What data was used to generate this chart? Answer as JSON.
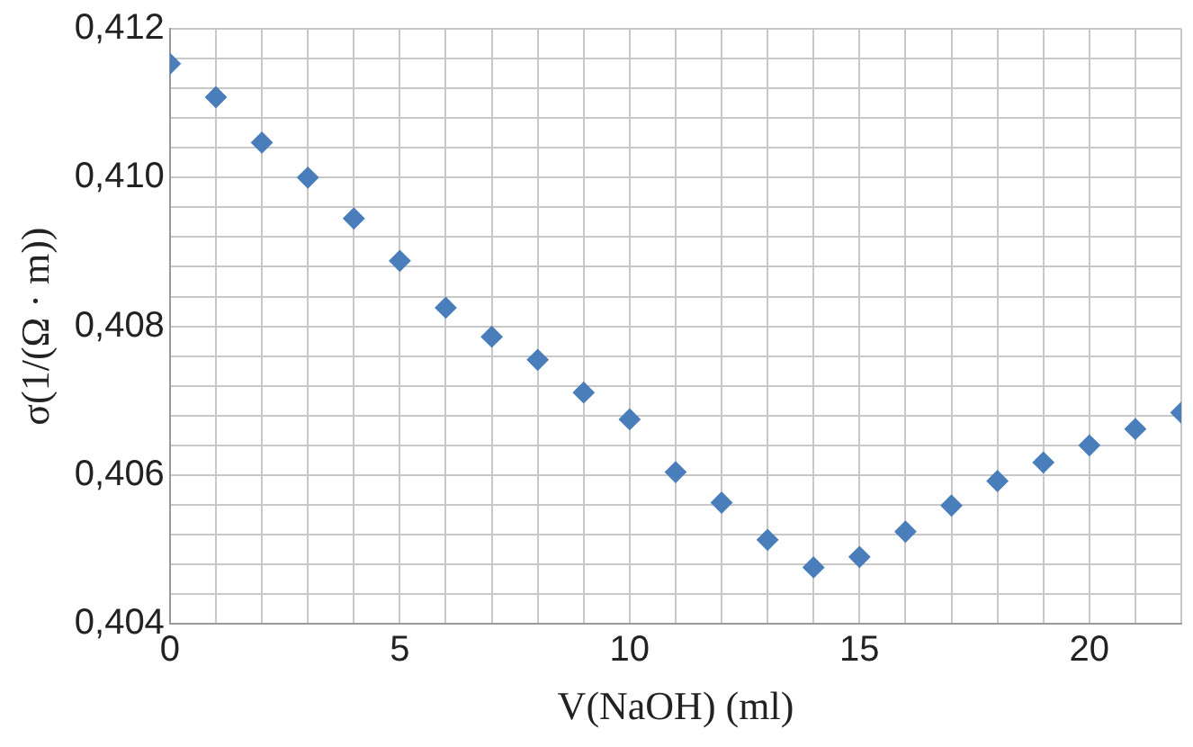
{
  "chart_data": {
    "type": "scatter",
    "xlabel": "V(NaOH) (ml)",
    "ylabel": "σ(1/(Ω · m))",
    "x": [
      0,
      1,
      2,
      3,
      4,
      5,
      6,
      7,
      8,
      9,
      10,
      11,
      12,
      13,
      14,
      15,
      16,
      17,
      18,
      19,
      20,
      21,
      22
    ],
    "series": [
      {
        "color": "#4a7ebb",
        "values": [
          0.41153,
          0.41108,
          0.41047,
          0.41,
          0.40945,
          0.40888,
          0.40825,
          0.40786,
          0.40755,
          0.40711,
          0.40675,
          0.40604,
          0.40563,
          0.40513,
          0.40476,
          0.4049,
          0.40524,
          0.40559,
          0.40592,
          0.40617,
          0.4064,
          0.40662,
          0.40684
        ]
      }
    ],
    "xlim": [
      0,
      22
    ],
    "ylim": [
      0.404,
      0.412
    ],
    "xticks": [
      0,
      {
        "value": 1,
        "label": null
      },
      {
        "value": 2,
        "label": null
      },
      {
        "value": 3,
        "label": null
      },
      {
        "value": 4,
        "label": null
      },
      5,
      {
        "value": 6,
        "label": null
      },
      {
        "value": 7,
        "label": null
      },
      {
        "value": 8,
        "label": null
      },
      {
        "value": 9,
        "label": null
      },
      10,
      {
        "value": 11,
        "label": null
      },
      {
        "value": 12,
        "label": null
      },
      {
        "value": 13,
        "label": null
      },
      {
        "value": 14,
        "label": null
      },
      15,
      {
        "value": 16,
        "label": null
      },
      {
        "value": 17,
        "label": null
      },
      {
        "value": 18,
        "label": null
      },
      {
        "value": 19,
        "label": null
      },
      20,
      {
        "value": 21,
        "label": null
      },
      {
        "value": 22,
        "label": null
      }
    ],
    "yticks": [
      {
        "value": 0.404,
        "label": "0,404"
      },
      {
        "value": 0.4044,
        "label": null
      },
      {
        "value": 0.4048,
        "label": null
      },
      {
        "value": 0.4052,
        "label": null
      },
      {
        "value": 0.4056,
        "label": null
      },
      {
        "value": 0.406,
        "label": "0,406"
      },
      {
        "value": 0.4064,
        "label": null
      },
      {
        "value": 0.4068,
        "label": null
      },
      {
        "value": 0.4072,
        "label": null
      },
      {
        "value": 0.4076,
        "label": null
      },
      {
        "value": 0.408,
        "label": "0,408"
      },
      {
        "value": 0.4084,
        "label": null
      },
      {
        "value": 0.4088,
        "label": null
      },
      {
        "value": 0.4092,
        "label": null
      },
      {
        "value": 0.4096,
        "label": null
      },
      {
        "value": 0.41,
        "label": "0,410"
      },
      {
        "value": 0.4104,
        "label": null
      },
      {
        "value": 0.4108,
        "label": null
      },
      {
        "value": 0.4112,
        "label": null
      },
      {
        "value": 0.4116,
        "label": null
      },
      {
        "value": 0.412,
        "label": "0,412"
      }
    ],
    "grid": true,
    "marker": "diamond"
  }
}
